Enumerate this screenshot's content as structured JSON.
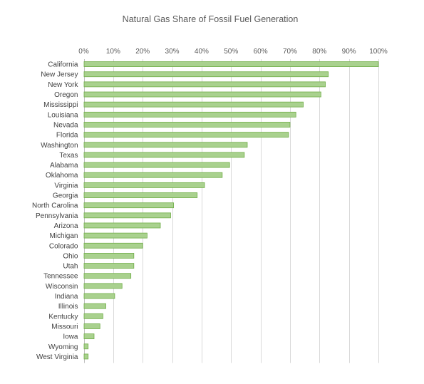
{
  "chart_data": {
    "type": "bar",
    "orientation": "horizontal",
    "title": "Natural Gas Share of Fossil Fuel Generation",
    "xlabel": "",
    "ylabel": "",
    "xlim": [
      0,
      100
    ],
    "x_ticks": [
      "0%",
      "10%",
      "20%",
      "30%",
      "40%",
      "50%",
      "60%",
      "70%",
      "80%",
      "90%",
      "100%"
    ],
    "x_axis_position": "top",
    "grid": true,
    "legend": "none",
    "bar_color": "#a9d18e",
    "bar_border_color": "#70ad47",
    "categories": [
      "California",
      "New Jersey",
      "New York",
      "Oregon",
      "Mississippi",
      "Louisiana",
      "Nevada",
      "Florida",
      "Washington",
      "Texas",
      "Alabama",
      "Oklahoma",
      "Virginia",
      "Georgia",
      "North Carolina",
      "Pennsylvania",
      "Arizona",
      "Michigan",
      "Colorado",
      "Ohio",
      "Utah",
      "Tennessee",
      "Wisconsin",
      "Indiana",
      "Illinois",
      "Kentucky",
      "Missouri",
      "Iowa",
      "Wyoming",
      "West Virginia"
    ],
    "values": [
      100,
      83,
      82,
      80.5,
      74.5,
      72,
      70,
      69.5,
      55.5,
      54.5,
      49.5,
      47,
      41,
      38.5,
      30.5,
      29.5,
      26,
      21.5,
      20,
      17,
      17,
      16,
      13,
      10.5,
      7.5,
      6.5,
      5.5,
      3.5,
      1.5,
      1.5
    ]
  }
}
